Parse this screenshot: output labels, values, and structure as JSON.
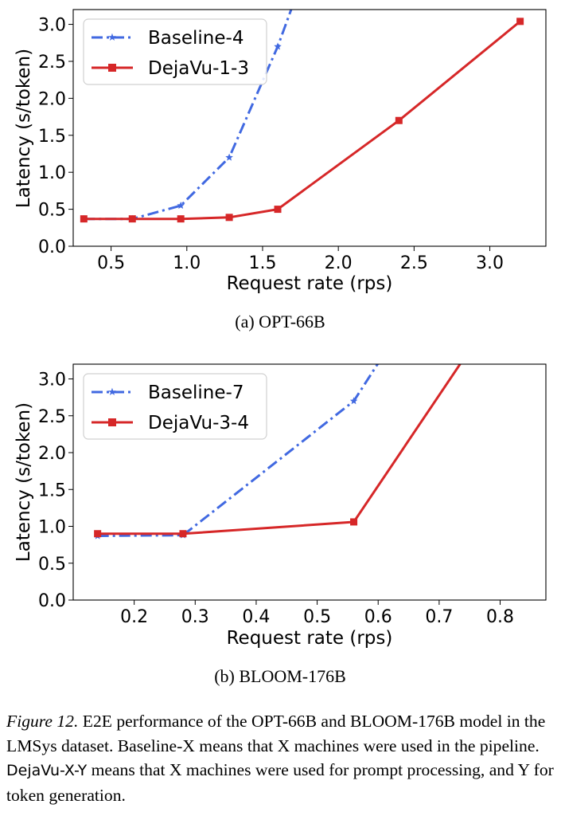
{
  "chart_data": [
    {
      "type": "line",
      "subcaption": "(a) OPT-66B",
      "xlabel": "Request rate (rps)",
      "ylabel": "Latency (s/token)",
      "xlim": [
        0.25,
        3.37
      ],
      "ylim": [
        0,
        3.2
      ],
      "xticks": [
        "0.5",
        "1.0",
        "1.5",
        "2.0",
        "2.5",
        "3.0"
      ],
      "yticks": [
        "0.0",
        "0.5",
        "1.0",
        "1.5",
        "2.0",
        "2.5",
        "3.0"
      ],
      "grid": false,
      "legend_position": "upper-left",
      "series": [
        {
          "name": "Baseline-4",
          "color": "#4169E1",
          "linestyle": "dashdot",
          "marker": "star",
          "x": [
            0.32,
            0.64,
            0.96,
            1.28,
            1.6,
            1.92
          ],
          "y": [
            0.37,
            0.37,
            0.55,
            1.2,
            2.7,
            4.5
          ]
        },
        {
          "name": "DejaVu-1-3",
          "color": "#D62728",
          "linestyle": "solid",
          "marker": "square",
          "x": [
            0.32,
            0.64,
            0.96,
            1.28,
            1.6,
            2.4,
            3.2
          ],
          "y": [
            0.37,
            0.37,
            0.37,
            0.39,
            0.5,
            1.7,
            3.04
          ]
        }
      ]
    },
    {
      "type": "line",
      "subcaption": "(b) BLOOM-176B",
      "xlabel": "Request rate (rps)",
      "ylabel": "Latency (s/token)",
      "xlim": [
        0.1,
        0.875
      ],
      "ylim": [
        0,
        3.2
      ],
      "xticks": [
        "0.2",
        "0.3",
        "0.4",
        "0.5",
        "0.6",
        "0.7",
        "0.8"
      ],
      "yticks": [
        "0.0",
        "0.5",
        "1.0",
        "1.5",
        "2.0",
        "2.5",
        "3.0"
      ],
      "grid": false,
      "legend_position": "upper-left",
      "series": [
        {
          "name": "Baseline-7",
          "color": "#4169E1",
          "linestyle": "dashdot",
          "marker": "star",
          "x": [
            0.14,
            0.28,
            0.56,
            0.7
          ],
          "y": [
            0.87,
            0.88,
            2.7,
            4.5
          ]
        },
        {
          "name": "DejaVu-3-4",
          "color": "#D62728",
          "linestyle": "solid",
          "marker": "square",
          "x": [
            0.14,
            0.28,
            0.56,
            0.84
          ],
          "y": [
            0.9,
            0.9,
            1.06,
            4.5
          ]
        }
      ]
    }
  ],
  "caption": {
    "label": "Figure 12.",
    "part1": " E2E performance of the OPT-66B and BLOOM-176B model in the LMSys dataset. Baseline-X means that X machines were used in the pipeline. ",
    "mono": "DejaVu-X-Y",
    "part2": " means that X machines were used for prompt processing, and Y for token generation."
  }
}
